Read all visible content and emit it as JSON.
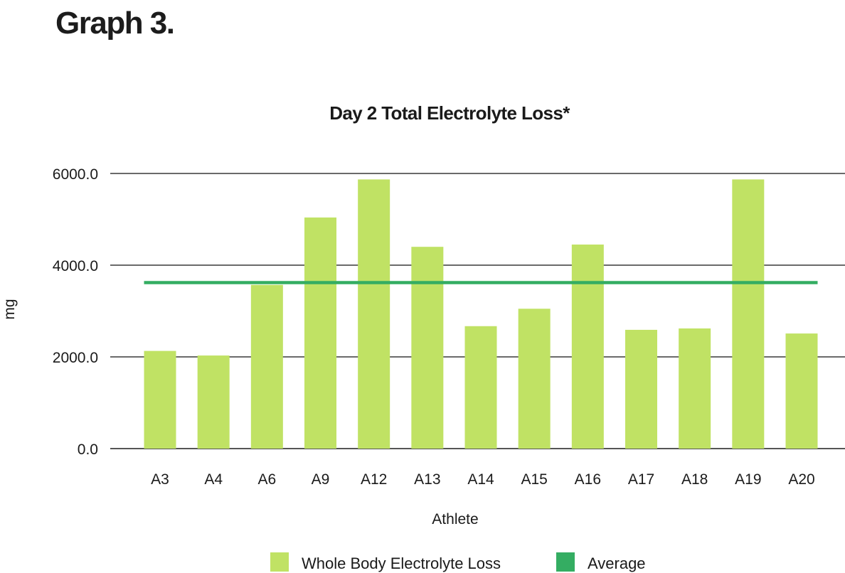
{
  "page": {
    "heading": "Graph 3."
  },
  "chart_data": {
    "type": "bar",
    "title": "Day 2 Total Electrolyte Loss*",
    "xlabel": "Athlete",
    "ylabel": "mg",
    "ylim": [
      0,
      6000
    ],
    "yticks": [
      0,
      2000,
      4000,
      6000
    ],
    "ytick_labels": [
      "0.0",
      "2000.0",
      "4000.0",
      "6000.0"
    ],
    "grid": true,
    "legend_position": "bottom",
    "categories": [
      "A3",
      "A4",
      "A6",
      "A9",
      "A12",
      "A13",
      "A14",
      "A15",
      "A16",
      "A17",
      "A18",
      "A19",
      "A20"
    ],
    "series": [
      {
        "name": "Whole Body Electrolyte Loss",
        "type": "bar",
        "color": "#c0e264",
        "values": [
          2130,
          2030,
          3570,
          5040,
          5870,
          4400,
          2670,
          3050,
          4450,
          2590,
          2620,
          5870,
          2510
        ]
      },
      {
        "name": "Average",
        "type": "line",
        "color": "#34ad62",
        "value": 3620
      }
    ]
  }
}
